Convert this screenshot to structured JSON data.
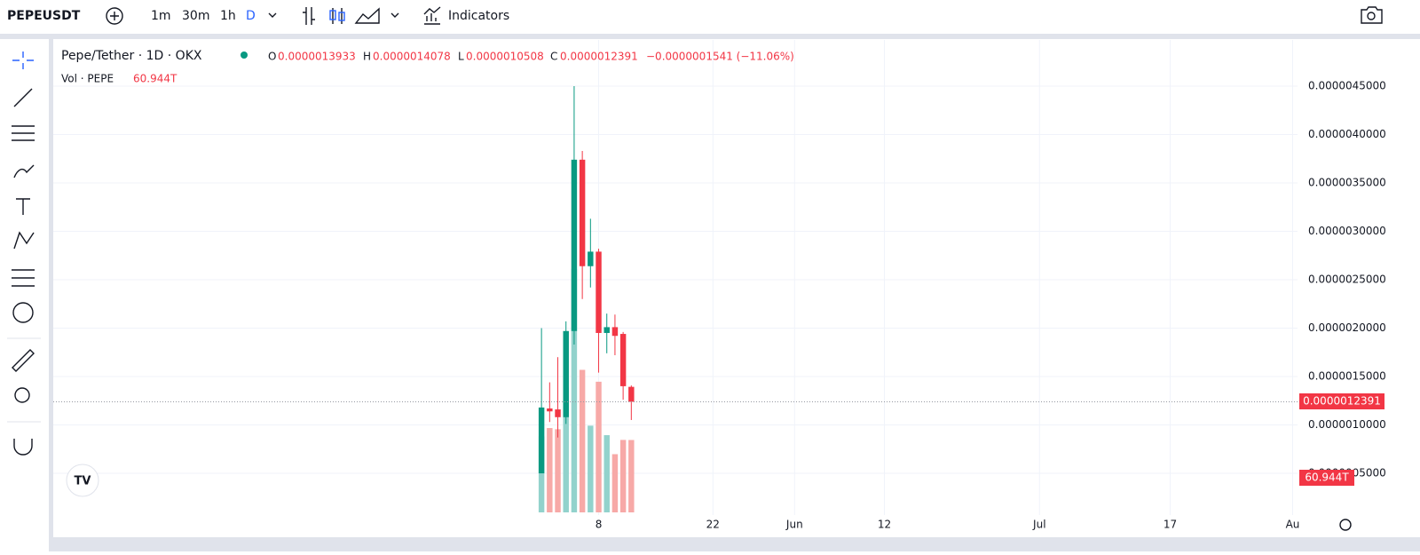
{
  "toolbar": {
    "symbol": "PEPEUSDT",
    "intervals": [
      "1m",
      "30m",
      "1h",
      "D"
    ],
    "indicators": "Indicators"
  },
  "legend": {
    "title": "Pepe/Tether · 1D · OKX",
    "o_key": "O",
    "o": "0.0000013933",
    "h_key": "H",
    "h": "0.0000014078",
    "l_key": "L",
    "l": "0.0000010508",
    "c_key": "C",
    "c": "0.0000012391",
    "change": "−0.0000001541 (−11.06%)",
    "vol_title": "Vol · PEPE",
    "vol": "60.944T"
  },
  "chart_data": {
    "type": "candlestick",
    "x": [
      0,
      1,
      2,
      3,
      4,
      5,
      6,
      7,
      8,
      9,
      10,
      11
    ],
    "open": [
      5e-07,
      1.17e-06,
      1.16e-06,
      1.08e-06,
      1.97e-06,
      3.74e-06,
      2.64e-06,
      2.79e-06,
      1.95e-06,
      2.01e-06,
      1.94e-06,
      1.3933e-06
    ],
    "high": [
      2e-06,
      1.44e-06,
      1.7e-06,
      2.07e-06,
      4.5e-06,
      3.83e-06,
      3.13e-06,
      2.82e-06,
      2.15e-06,
      2.14e-06,
      1.96e-06,
      1.4078e-06
    ],
    "low": [
      5e-07,
      1.03e-06,
      8.7e-07,
      1.01e-06,
      1.83e-06,
      2.3e-06,
      2.42e-06,
      1.54e-06,
      1.74e-06,
      1.72e-06,
      1.26e-06,
      1.0508e-06
    ],
    "close": [
      1.18e-06,
      1.14e-06,
      1.08e-06,
      1.97e-06,
      3.74e-06,
      2.64e-06,
      2.79e-06,
      1.95e-06,
      2.01e-06,
      1.92e-06,
      1.4e-06,
      1.2391e-06
    ],
    "volume": [
      64,
      71,
      70,
      105,
      205,
      120,
      73,
      110,
      65,
      49,
      61,
      60.944
    ],
    "up_color": "#089981",
    "down_color": "#f23645",
    "up_volume_color": "#92d2cc",
    "down_volume_color": "#f7a9a7",
    "xlim": [
      -59.8,
      92.6
    ],
    "xticks": [
      {
        "value": 7,
        "label": "8"
      },
      {
        "value": 21,
        "label": "22"
      },
      {
        "value": 31,
        "label": "Jun"
      },
      {
        "value": 42,
        "label": "12"
      },
      {
        "value": 61,
        "label": "Jul"
      },
      {
        "value": 77,
        "label": "17"
      },
      {
        "value": 92,
        "label": "Au"
      }
    ],
    "ylim": [
      6.9e-08,
      4.977e-06
    ],
    "yticks": [
      {
        "value": 5e-07,
        "label": "0.0000005000"
      },
      {
        "value": 1e-06,
        "label": "0.0000010000"
      },
      {
        "value": 1.5e-06,
        "label": "0.0000015000"
      },
      {
        "value": 2e-06,
        "label": "0.0000020000"
      },
      {
        "value": 2.5e-06,
        "label": "0.0000025000"
      },
      {
        "value": 3e-06,
        "label": "0.0000030000"
      },
      {
        "value": 3.5e-06,
        "label": "0.0000035000"
      },
      {
        "value": 4e-06,
        "label": "0.0000040000"
      },
      {
        "value": 4.5e-06,
        "label": "0.0000045000"
      }
    ],
    "volume_ylim": [
      0,
      400
    ],
    "grid": true
  }
}
